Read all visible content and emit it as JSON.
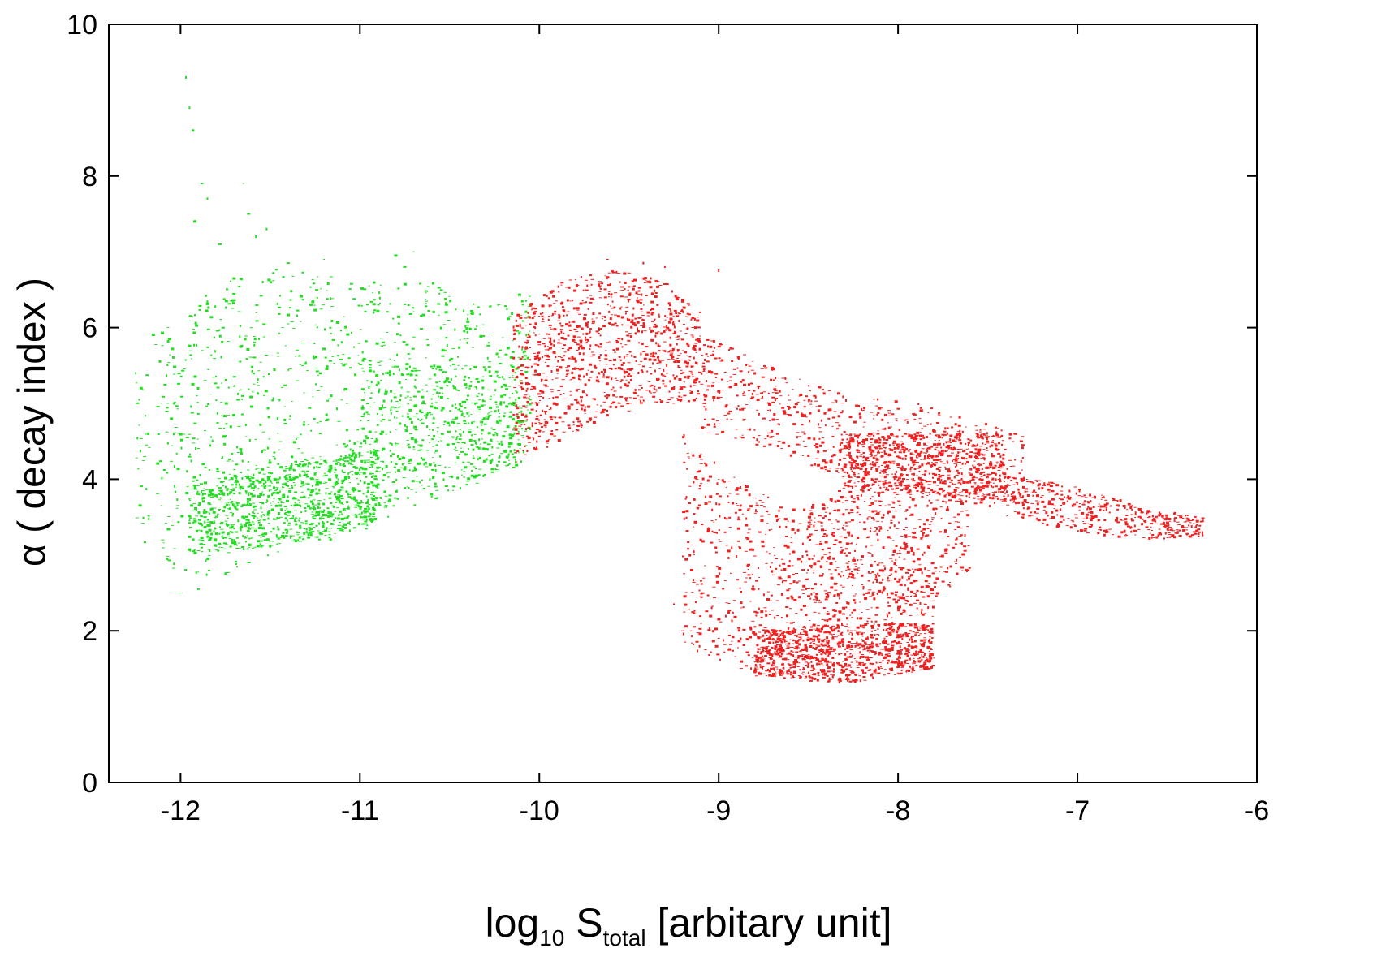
{
  "chart_data": {
    "type": "scatter",
    "title": "",
    "xlabel": {
      "base": "log",
      "sub1": "10",
      "mid": " S",
      "sub2": "total",
      "rest": " [arbitary unit]"
    },
    "ylabel": {
      "symbol": "α",
      "rest": " ( decay index )"
    },
    "xlim": [
      -12.4,
      -6
    ],
    "ylim": [
      0,
      10
    ],
    "xticks": [
      -12,
      -11,
      -10,
      -9,
      -8,
      -7,
      -6
    ],
    "xtick_labels": [
      "-12",
      "-11",
      "-10",
      "-9",
      "-8",
      "-7",
      "-6"
    ],
    "yticks": [
      0,
      2,
      4,
      6,
      8,
      10
    ],
    "ytick_labels": [
      "0",
      "2",
      "4",
      "6",
      "8",
      "10"
    ],
    "grid": false,
    "legend": "none",
    "series": [
      {
        "color": "#22dd22",
        "clusters": [
          {
            "xmin": -12.1,
            "xmax": -10.05,
            "ylow": [
              [
                -12.1,
                2.9
              ],
              [
                -11.9,
                2.6
              ],
              [
                -11.5,
                3.0
              ],
              [
                -11.0,
                3.3
              ],
              [
                -10.5,
                3.8
              ],
              [
                -10.05,
                4.2
              ]
            ],
            "yhigh": [
              [
                -12.1,
                6.0
              ],
              [
                -11.8,
                6.6
              ],
              [
                -11.4,
                6.8
              ],
              [
                -11.0,
                6.6
              ],
              [
                -10.6,
                6.6
              ],
              [
                -10.3,
                6.3
              ],
              [
                -10.05,
                6.5
              ]
            ],
            "n": 1200
          },
          {
            "xmin": -11.95,
            "xmax": -10.9,
            "ylow": [
              [
                -11.95,
                3.0
              ],
              [
                -11.5,
                3.1
              ],
              [
                -10.9,
                3.4
              ]
            ],
            "yhigh": [
              [
                -11.95,
                3.9
              ],
              [
                -11.5,
                4.2
              ],
              [
                -10.9,
                4.4
              ]
            ],
            "n": 900
          },
          {
            "xmin": -11.0,
            "xmax": -10.1,
            "ylow": [
              [
                -11.0,
                3.5
              ],
              [
                -10.1,
                4.2
              ]
            ],
            "yhigh": [
              [
                -11.0,
                5.6
              ],
              [
                -10.1,
                5.4
              ]
            ],
            "n": 400
          },
          {
            "xmin": -12.25,
            "xmax": -12.1,
            "ylow": [
              [
                -12.25,
                3.2
              ],
              [
                -12.1,
                3.0
              ]
            ],
            "yhigh": [
              [
                -12.25,
                5.4
              ],
              [
                -12.1,
                6.2
              ]
            ],
            "n": 40
          }
        ],
        "points": [
          [
            -11.97,
            9.3
          ],
          [
            -11.95,
            8.9
          ],
          [
            -11.93,
            8.6
          ],
          [
            -11.88,
            7.9
          ],
          [
            -11.92,
            7.4
          ],
          [
            -11.85,
            7.7
          ],
          [
            -11.65,
            7.9
          ],
          [
            -11.62,
            7.5
          ],
          [
            -11.58,
            7.2
          ],
          [
            -11.52,
            7.3
          ],
          [
            -11.78,
            7.1
          ],
          [
            -10.7,
            7.0
          ],
          [
            -10.75,
            6.8
          ],
          [
            -11.2,
            6.9
          ],
          [
            -12.25,
            5.4
          ],
          [
            -12.22,
            5.2
          ],
          [
            -12.18,
            4.6
          ],
          [
            -12.2,
            4.3
          ],
          [
            -12.1,
            3.2
          ],
          [
            -12.0,
            2.5
          ],
          [
            -11.9,
            2.55
          ],
          [
            -11.4,
            6.85
          ],
          [
            -10.8,
            6.95
          ]
        ]
      },
      {
        "color": "#ee2020",
        "clusters": [
          {
            "xmin": -10.15,
            "xmax": -9.1,
            "ylow": [
              [
                -10.15,
                4.2
              ],
              [
                -9.8,
                4.6
              ],
              [
                -9.5,
                5.0
              ],
              [
                -9.1,
                5.0
              ]
            ],
            "yhigh": [
              [
                -10.15,
                6.1
              ],
              [
                -9.9,
                6.6
              ],
              [
                -9.6,
                6.8
              ],
              [
                -9.3,
                6.6
              ],
              [
                -9.1,
                6.2
              ]
            ],
            "n": 1100
          },
          {
            "xmin": -9.1,
            "xmax": -7.3,
            "ylow": [
              [
                -9.1,
                4.6
              ],
              [
                -8.7,
                4.4
              ],
              [
                -8.3,
                4.0
              ],
              [
                -7.9,
                3.9
              ],
              [
                -7.6,
                3.6
              ],
              [
                -7.3,
                3.7
              ]
            ],
            "yhigh": [
              [
                -9.1,
                5.9
              ],
              [
                -8.7,
                5.5
              ],
              [
                -8.3,
                5.1
              ],
              [
                -7.9,
                5.0
              ],
              [
                -7.6,
                4.8
              ],
              [
                -7.3,
                4.6
              ]
            ],
            "n": 700
          },
          {
            "xmin": -8.3,
            "xmax": -7.4,
            "ylow": [
              [
                -8.3,
                3.9
              ],
              [
                -7.4,
                3.7
              ]
            ],
            "yhigh": [
              [
                -8.3,
                4.6
              ],
              [
                -7.4,
                4.6
              ]
            ],
            "n": 750
          },
          {
            "xmin": -7.4,
            "xmax": -6.3,
            "ylow": [
              [
                -7.4,
                3.5
              ],
              [
                -7.0,
                3.3
              ],
              [
                -6.6,
                3.2
              ],
              [
                -6.3,
                3.25
              ]
            ],
            "yhigh": [
              [
                -7.4,
                4.1
              ],
              [
                -7.0,
                3.9
              ],
              [
                -6.6,
                3.6
              ],
              [
                -6.3,
                3.5
              ]
            ],
            "n": 450
          },
          {
            "xmin": -9.2,
            "xmax": -7.8,
            "ylow": [
              [
                -9.2,
                1.8
              ],
              [
                -8.9,
                1.5
              ],
              [
                -8.6,
                1.35
              ],
              [
                -8.2,
                1.35
              ],
              [
                -7.8,
                1.5
              ]
            ],
            "yhigh": [
              [
                -9.2,
                4.6
              ],
              [
                -8.9,
                4.0
              ],
              [
                -8.6,
                3.6
              ],
              [
                -8.2,
                4.0
              ],
              [
                -7.8,
                3.5
              ]
            ],
            "n": 900
          },
          {
            "xmin": -8.8,
            "xmax": -7.8,
            "ylow": [
              [
                -8.8,
                1.4
              ],
              [
                -8.3,
                1.3
              ],
              [
                -7.8,
                1.5
              ]
            ],
            "yhigh": [
              [
                -8.8,
                2.0
              ],
              [
                -8.3,
                2.1
              ],
              [
                -7.8,
                2.1
              ]
            ],
            "n": 900
          },
          {
            "xmin": -8.5,
            "xmax": -7.6,
            "ylow": [
              [
                -8.5,
                2.0
              ],
              [
                -7.9,
                2.2
              ],
              [
                -7.6,
                2.8
              ]
            ],
            "yhigh": [
              [
                -8.5,
                3.7
              ],
              [
                -7.9,
                3.9
              ],
              [
                -7.6,
                3.8
              ]
            ],
            "n": 400
          }
        ],
        "points": [
          [
            -9.25,
            2.35
          ],
          [
            -9.2,
            2.0
          ],
          [
            -9.15,
            2.8
          ],
          [
            -9.1,
            3.2
          ],
          [
            -9.05,
            3.7
          ],
          [
            -9.0,
            4.0
          ],
          [
            -9.42,
            6.85
          ],
          [
            -9.62,
            6.9
          ],
          [
            -9.0,
            6.75
          ],
          [
            -9.3,
            6.8
          ],
          [
            -6.3,
            3.45
          ],
          [
            -6.32,
            3.3
          ],
          [
            -9.55,
            5.0
          ],
          [
            -9.5,
            4.9
          ]
        ]
      }
    ]
  }
}
